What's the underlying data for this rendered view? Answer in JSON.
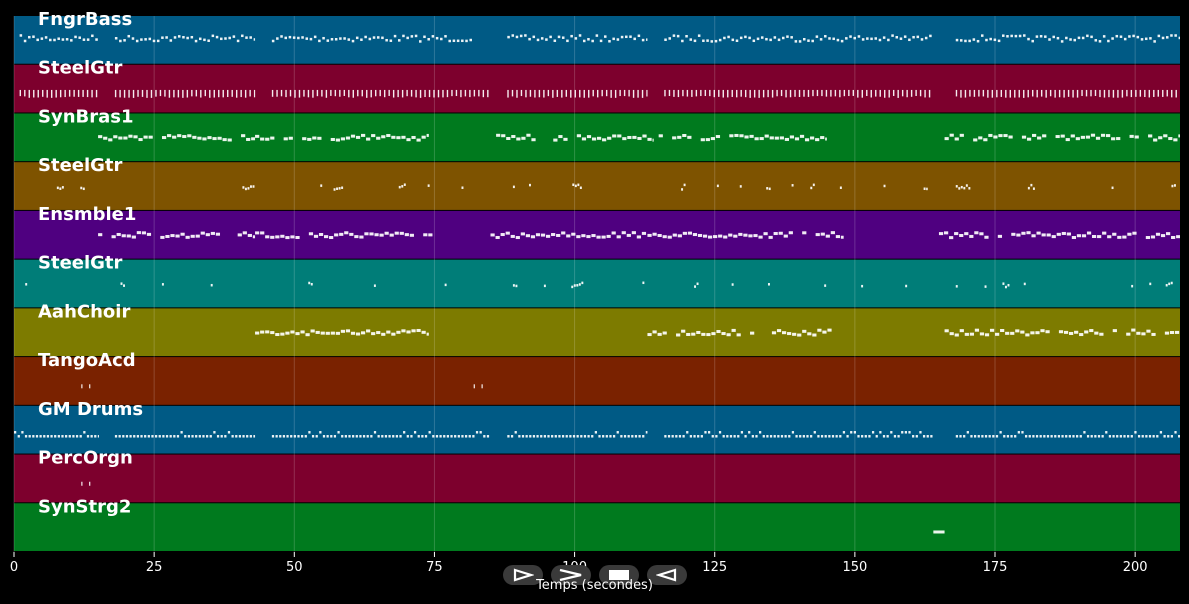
{
  "axis": {
    "xlabel": "Temps (secondes)",
    "xmin": 0,
    "xmax": 208,
    "ticks": [
      0,
      25,
      50,
      75,
      100,
      125,
      150,
      175,
      200
    ]
  },
  "tracks": [
    {
      "name": "FngrBass",
      "color": "#005a85",
      "pattern": "bass",
      "segments": [
        [
          1,
          15
        ],
        [
          18,
          43
        ],
        [
          46,
          82
        ],
        [
          88,
          113
        ],
        [
          116,
          164
        ],
        [
          168,
          208
        ]
      ]
    },
    {
      "name": "SteelGtr",
      "color": "#7d002d",
      "pattern": "ticks",
      "segments": [
        [
          1,
          15
        ],
        [
          18,
          43
        ],
        [
          46,
          85
        ],
        [
          88,
          113
        ],
        [
          116,
          164
        ],
        [
          168,
          208
        ]
      ]
    },
    {
      "name": "SynBras1",
      "color": "#007a1e",
      "pattern": "phrases",
      "segments": [
        [
          15,
          43
        ],
        [
          43,
          74
        ],
        [
          86,
          114
        ],
        [
          115,
          145
        ],
        [
          166,
          208
        ]
      ]
    },
    {
      "name": "SteelGtr",
      "color": "#7e5300",
      "pattern": "sparse",
      "segments": [
        [
          2,
          15
        ],
        [
          19,
          43
        ],
        [
          49,
          85
        ],
        [
          89,
          113
        ],
        [
          119,
          163
        ],
        [
          168,
          208
        ]
      ]
    },
    {
      "name": "Ensmble1",
      "color": "#4f0080",
      "pattern": "phrases",
      "segments": [
        [
          15,
          43
        ],
        [
          43,
          75
        ],
        [
          85,
          113
        ],
        [
          113,
          148
        ],
        [
          165,
          208
        ]
      ]
    },
    {
      "name": "SteelGtr",
      "color": "#007d78",
      "pattern": "sparse",
      "segments": [
        [
          2,
          15
        ],
        [
          19,
          43
        ],
        [
          49,
          85
        ],
        [
          89,
          113
        ],
        [
          119,
          163
        ],
        [
          168,
          208
        ]
      ]
    },
    {
      "name": "AahChoir",
      "color": "#7d7b00",
      "pattern": "phrases",
      "segments": [
        [
          43,
          74
        ],
        [
          113,
          146
        ],
        [
          166,
          208
        ]
      ]
    },
    {
      "name": "TangoAcd",
      "color": "#7a2200",
      "pattern": "dots",
      "segments": [
        [
          12,
          14
        ],
        [
          82,
          84
        ]
      ]
    },
    {
      "name": "GM Drums",
      "color": "#005a85",
      "pattern": "drums",
      "segments": [
        [
          0,
          15
        ],
        [
          18,
          43
        ],
        [
          46,
          85
        ],
        [
          88,
          113
        ],
        [
          116,
          164
        ],
        [
          168,
          208
        ]
      ]
    },
    {
      "name": "PercOrgn",
      "color": "#7d002d",
      "pattern": "dots",
      "segments": [
        [
          12,
          14
        ]
      ]
    },
    {
      "name": "SynStrg2",
      "color": "#007a1e",
      "pattern": "single",
      "segments": [
        [
          164,
          166
        ]
      ]
    }
  ],
  "controls": [
    {
      "id": "play",
      "icon": "play-icon"
    },
    {
      "id": "fast-forward",
      "icon": "fast-forward-icon"
    },
    {
      "id": "stop",
      "icon": "stop-icon"
    },
    {
      "id": "rewind",
      "icon": "rewind-icon"
    }
  ]
}
